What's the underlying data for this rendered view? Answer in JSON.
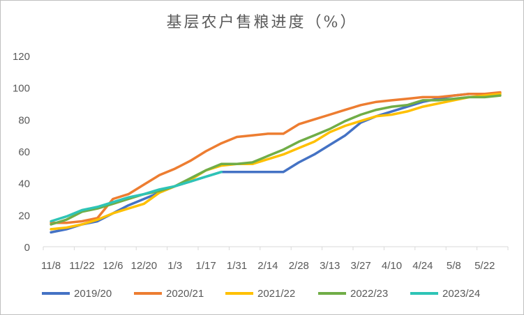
{
  "chart_data": {
    "type": "line",
    "title": "基层农户售粮进度（%）",
    "xlabel": "",
    "ylabel": "",
    "ylim": [
      0,
      120
    ],
    "yticks": [
      "0",
      "20",
      "40",
      "60",
      "80",
      "100",
      "120"
    ],
    "grid": false,
    "legend_position": "bottom",
    "x": [
      "11/8",
      "11/15",
      "11/22",
      "11/29",
      "12/6",
      "12/13",
      "12/20",
      "12/27",
      "1/3",
      "1/10",
      "1/17",
      "1/24",
      "1/31",
      "2/7",
      "2/14",
      "2/21",
      "2/28",
      "3/6",
      "3/13",
      "3/20",
      "3/27",
      "4/3",
      "4/10",
      "4/17",
      "4/24",
      "5/1",
      "5/8",
      "5/15",
      "5/22",
      "5/29"
    ],
    "xtick_labels": [
      "11/8",
      "11/22",
      "12/6",
      "12/20",
      "1/3",
      "1/17",
      "1/31",
      "2/14",
      "2/28",
      "3/13",
      "3/27",
      "4/10",
      "4/24",
      "5/8",
      "5/22"
    ],
    "series": [
      {
        "name": "2019/20",
        "color": "#4472c4",
        "values": [
          9,
          11,
          14,
          16,
          21,
          26,
          30,
          34,
          38,
          41,
          44,
          47,
          47,
          47,
          47,
          47,
          53,
          58,
          64,
          70,
          78,
          82,
          85,
          88,
          91,
          93,
          95,
          96,
          96,
          96
        ]
      },
      {
        "name": "2020/21",
        "color": "#ed7d31",
        "values": [
          15,
          15,
          16,
          18,
          30,
          33,
          39,
          45,
          49,
          54,
          60,
          65,
          69,
          70,
          71,
          71,
          77,
          80,
          83,
          86,
          89,
          91,
          92,
          93,
          94,
          94,
          95,
          96,
          96,
          97
        ]
      },
      {
        "name": "2021/22",
        "color": "#ffc000",
        "values": [
          11,
          12,
          14,
          17,
          21,
          24,
          27,
          34,
          38,
          42,
          48,
          51,
          52,
          52,
          55,
          58,
          62,
          66,
          72,
          76,
          79,
          82,
          83,
          85,
          88,
          90,
          92,
          94,
          95,
          96
        ]
      },
      {
        "name": "2022/23",
        "color": "#70ad47",
        "values": [
          14,
          17,
          22,
          24,
          27,
          30,
          33,
          35,
          38,
          43,
          48,
          52,
          52,
          53,
          57,
          61,
          66,
          70,
          74,
          79,
          83,
          86,
          88,
          89,
          92,
          92,
          93,
          94,
          94,
          95
        ]
      },
      {
        "name": "2023/24",
        "color": "#2ec4b6",
        "values": [
          16,
          19,
          23,
          25,
          28,
          31,
          33,
          36,
          38,
          41,
          44,
          47,
          null,
          null,
          null,
          null,
          null,
          null,
          null,
          null,
          null,
          null,
          null,
          null,
          null,
          null,
          null,
          null,
          null,
          null
        ]
      }
    ]
  }
}
